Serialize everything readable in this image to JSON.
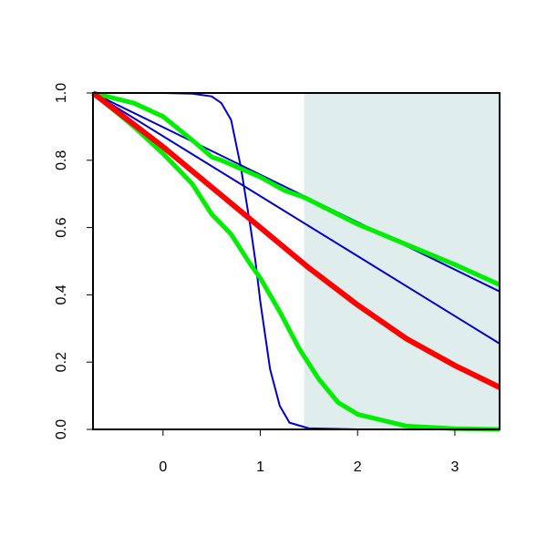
{
  "chart_data": {
    "type": "line",
    "xlim": [
      -0.72,
      3.46
    ],
    "ylim": [
      0,
      1
    ],
    "xticks": [
      0,
      1,
      2,
      3
    ],
    "yticks": [
      {
        "value": 0,
        "label": "0.0"
      },
      0.2,
      0.4,
      0.6,
      0.8,
      {
        "value": 1,
        "label": "1.0"
      }
    ],
    "shaded_region": [
      1.45,
      3.46
    ],
    "shade_color": "#dfeded",
    "series": [
      {
        "color": "#0000cc",
        "width": 2,
        "x": [
          -0.72,
          0,
          0.3,
          0.5,
          0.6,
          0.7,
          0.8,
          0.9,
          0.95,
          1.0,
          1.1,
          1.2,
          1.3,
          1.5,
          2,
          3.46
        ],
        "values": [
          1,
          1,
          0.998,
          0.99,
          0.97,
          0.92,
          0.78,
          0.6,
          0.5,
          0.38,
          0.18,
          0.07,
          0.02,
          0.003,
          0,
          0
        ]
      },
      {
        "color": "#0000cc",
        "width": 2,
        "x": [
          -0.72,
          3.46
        ],
        "values": [
          1,
          0.41
        ]
      },
      {
        "color": "#0000cc",
        "width": 2,
        "x": [
          -0.72,
          3.46
        ],
        "values": [
          1,
          0.255
        ]
      },
      {
        "color": "#00ee00",
        "width": 5,
        "x": [
          -0.72,
          -0.3,
          0,
          0.3,
          0.5,
          0.6,
          1,
          1.25,
          1.45,
          2,
          2.5,
          3,
          3.46
        ],
        "values": [
          1,
          0.97,
          0.93,
          0.86,
          0.81,
          0.8,
          0.75,
          0.71,
          0.69,
          0.61,
          0.55,
          0.49,
          0.43
        ]
      },
      {
        "color": "#00ee00",
        "width": 5,
        "x": [
          -0.72,
          -0.3,
          0,
          0.3,
          0.5,
          0.6,
          0.7,
          0.9,
          1,
          1.2,
          1.4,
          1.6,
          1.8,
          2,
          2.5,
          3,
          3.46
        ],
        "values": [
          1,
          0.9,
          0.82,
          0.73,
          0.64,
          0.61,
          0.58,
          0.49,
          0.45,
          0.35,
          0.24,
          0.15,
          0.08,
          0.045,
          0.01,
          0.002,
          0
        ]
      },
      {
        "color": "#ff0000",
        "width": 6,
        "x": [
          -0.72,
          0,
          0.5,
          1,
          1.5,
          2,
          2.5,
          3,
          3.46
        ],
        "values": [
          1,
          0.84,
          0.72,
          0.6,
          0.48,
          0.37,
          0.27,
          0.19,
          0.125
        ]
      }
    ]
  }
}
